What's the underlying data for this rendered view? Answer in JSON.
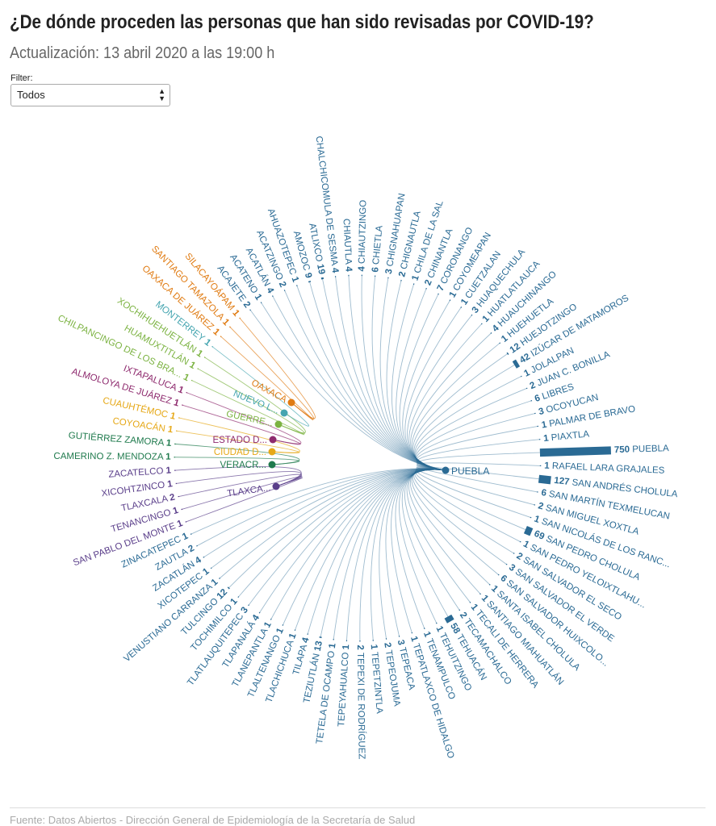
{
  "header": {
    "title": "¿De dónde proceden las personas que han sido revisadas por COVID-19?",
    "subtitle": "Actualización: 13 abril 2020 a las 19:00 h"
  },
  "filter": {
    "label": "Filter:",
    "value": "Todos"
  },
  "footer": {
    "source": "Fuente: Datos Abiertos - Dirección General de Epidemiología de la Secretaría de Salud"
  },
  "colors": {
    "Puebla": "#2a6a94",
    "Oaxaca": "#e07b12",
    "Nuevo León": "#45a5b0",
    "Guerrero": "#7cb342",
    "Estado de México": "#8e2a6e",
    "Ciudad de México": "#e6a817",
    "Veracruz": "#1f7a4d",
    "Tlaxcala": "#5a3e8a"
  },
  "chart_data": {
    "type": "radial-bar",
    "hub_left": "PUEBLA",
    "hubs_right": [
      {
        "label": "OAXACA",
        "state": "Oaxaca"
      },
      {
        "label": "NUEVO L...",
        "state": "Nuevo León"
      },
      {
        "label": "GUERRE...",
        "state": "Guerrero"
      },
      {
        "label": "ESTADO D...",
        "state": "Estado de México"
      },
      {
        "label": "CIUDAD D...",
        "state": "Ciudad de México"
      },
      {
        "label": "VERACR...",
        "state": "Veracruz"
      },
      {
        "label": "TLAXCA...",
        "state": "Tlaxcala"
      }
    ],
    "nodes": [
      {
        "name": "CHALCHICOMULA DE SESMA",
        "value": 4,
        "state": "Puebla"
      },
      {
        "name": "CHIAUTLA",
        "value": 4,
        "state": "Puebla"
      },
      {
        "name": "CHIAUTZINGO",
        "value": 4,
        "state": "Puebla"
      },
      {
        "name": "CHIETLA",
        "value": 6,
        "state": "Puebla"
      },
      {
        "name": "CHIGNAHUAPAN",
        "value": 3,
        "state": "Puebla"
      },
      {
        "name": "CHIGNAUTLA",
        "value": 2,
        "state": "Puebla"
      },
      {
        "name": "CHILA DE LA SAL",
        "value": 1,
        "state": "Puebla"
      },
      {
        "name": "CHINANTLA",
        "value": 2,
        "state": "Puebla"
      },
      {
        "name": "CORONANGO",
        "value": 7,
        "state": "Puebla"
      },
      {
        "name": "COYOMEAPAN",
        "value": 1,
        "state": "Puebla"
      },
      {
        "name": "CUETZALAN",
        "value": 1,
        "state": "Puebla"
      },
      {
        "name": "HUAQUECHULA",
        "value": 3,
        "state": "Puebla"
      },
      {
        "name": "HUATLATLAUCA",
        "value": 1,
        "state": "Puebla"
      },
      {
        "name": "HUAUCHINANGO",
        "value": 4,
        "state": "Puebla"
      },
      {
        "name": "HUEHUETLA",
        "value": 1,
        "state": "Puebla"
      },
      {
        "name": "HUEJOTZINGO",
        "value": 12,
        "state": "Puebla"
      },
      {
        "name": "IZÚCAR DE MATAMOROS",
        "value": 42,
        "state": "Puebla"
      },
      {
        "name": "JOLALPAN",
        "value": 1,
        "state": "Puebla"
      },
      {
        "name": "JUAN C. BONILLA",
        "value": 2,
        "state": "Puebla"
      },
      {
        "name": "LIBRES",
        "value": 6,
        "state": "Puebla"
      },
      {
        "name": "OCOYUCAN",
        "value": 3,
        "state": "Puebla"
      },
      {
        "name": "PALMAR DE BRAVO",
        "value": 1,
        "state": "Puebla"
      },
      {
        "name": "PIAXTLA",
        "value": 1,
        "state": "Puebla"
      },
      {
        "name": "PUEBLA",
        "value": 750,
        "state": "Puebla"
      },
      {
        "name": "RAFAEL LARA GRAJALES",
        "value": 1,
        "state": "Puebla"
      },
      {
        "name": "SAN ANDRÉS CHOLULA",
        "value": 127,
        "state": "Puebla"
      },
      {
        "name": "SAN MARTÍN TEXMELUCAN",
        "value": 6,
        "state": "Puebla"
      },
      {
        "name": "SAN MIGUEL XOXTLA",
        "value": 2,
        "state": "Puebla"
      },
      {
        "name": "SAN NICOLÁS DE LOS RANC...",
        "value": 1,
        "state": "Puebla"
      },
      {
        "name": "SAN PEDRO CHOLULA",
        "value": 69,
        "state": "Puebla"
      },
      {
        "name": "SAN PEDRO YELOIXTLAHU...",
        "value": 1,
        "state": "Puebla"
      },
      {
        "name": "SAN SALVADOR EL SECO",
        "value": 2,
        "state": "Puebla"
      },
      {
        "name": "SAN SALVADOR EL VERDE",
        "value": 3,
        "state": "Puebla"
      },
      {
        "name": "SAN SALVADOR HUIXCOLO...",
        "value": 6,
        "state": "Puebla"
      },
      {
        "name": "SANTA ISABEL CHOLULA",
        "value": 1,
        "state": "Puebla"
      },
      {
        "name": "SANTIAGO MIAHUATLÁN",
        "value": 1,
        "state": "Puebla"
      },
      {
        "name": "TECALI DE HERRERA",
        "value": 1,
        "state": "Puebla"
      },
      {
        "name": "TECAMACHALCO",
        "value": 2,
        "state": "Puebla"
      },
      {
        "name": "TEHUACÁN",
        "value": 58,
        "state": "Puebla"
      },
      {
        "name": "TEHUITZINGO",
        "value": 1,
        "state": "Puebla"
      },
      {
        "name": "TENAMPULCO",
        "value": 1,
        "state": "Puebla"
      },
      {
        "name": "TEPATLAXCO DE HIDALGO",
        "value": 1,
        "state": "Puebla"
      },
      {
        "name": "TEPEACA",
        "value": 3,
        "state": "Puebla"
      },
      {
        "name": "TEPEOJUMA",
        "value": 2,
        "state": "Puebla"
      },
      {
        "name": "TEPETZINTLA",
        "value": 1,
        "state": "Puebla"
      },
      {
        "name": "TEPEXI DE RODRÍGUEZ",
        "value": 2,
        "state": "Puebla"
      },
      {
        "name": "TEPEYAHUALCO",
        "value": 1,
        "state": "Puebla"
      },
      {
        "name": "TETELA DE OCAMPO",
        "value": 1,
        "state": "Puebla"
      },
      {
        "name": "TEZIUTLÁN",
        "value": 13,
        "state": "Puebla"
      },
      {
        "name": "TILAPA",
        "value": 4,
        "state": "Puebla"
      },
      {
        "name": "TLACHICHUCA",
        "value": 1,
        "state": "Puebla"
      },
      {
        "name": "TLALTENANGO",
        "value": 1,
        "state": "Puebla"
      },
      {
        "name": "TLANEPANTLA",
        "value": 1,
        "state": "Puebla"
      },
      {
        "name": "TLAPANALÁ",
        "value": 4,
        "state": "Puebla"
      },
      {
        "name": "TLATLAUQUITEPEC",
        "value": 3,
        "state": "Puebla"
      },
      {
        "name": "TOCHIMILCO",
        "value": 1,
        "state": "Puebla"
      },
      {
        "name": "TULCINGO",
        "value": 12,
        "state": "Puebla"
      },
      {
        "name": "VENUSTIANO CARRANZA",
        "value": 1,
        "state": "Puebla"
      },
      {
        "name": "XICOTEPEC",
        "value": 1,
        "state": "Puebla"
      },
      {
        "name": "ZACATLÁN",
        "value": 4,
        "state": "Puebla"
      },
      {
        "name": "ZAUTLA",
        "value": 2,
        "state": "Puebla"
      },
      {
        "name": "ZINACATEPEC",
        "value": 1,
        "state": "Puebla"
      },
      {
        "name": "SAN PABLO DEL MONTE",
        "value": 1,
        "state": "Tlaxcala"
      },
      {
        "name": "TENANCINGO",
        "value": 1,
        "state": "Tlaxcala"
      },
      {
        "name": "TLAXCALA",
        "value": 2,
        "state": "Tlaxcala"
      },
      {
        "name": "XICOHTZINCO",
        "value": 1,
        "state": "Tlaxcala"
      },
      {
        "name": "ZACATELCO",
        "value": 1,
        "state": "Tlaxcala"
      },
      {
        "name": "CAMERINO Z. MENDOZA",
        "value": 1,
        "state": "Veracruz"
      },
      {
        "name": "GUTIÉRREZ ZAMORA",
        "value": 1,
        "state": "Veracruz"
      },
      {
        "name": "COYOACÁN",
        "value": 1,
        "state": "Ciudad de México"
      },
      {
        "name": "CUAUHTÉMOC",
        "value": 1,
        "state": "Ciudad de México"
      },
      {
        "name": "ALMOLOYA DE JUÁREZ",
        "value": 1,
        "state": "Estado de México"
      },
      {
        "name": "IXTAPALUCA",
        "value": 1,
        "state": "Estado de México"
      },
      {
        "name": "CHILPANCINGO DE LOS BRA...",
        "value": 1,
        "state": "Guerrero"
      },
      {
        "name": "HUAMUXTITLÁN",
        "value": 1,
        "state": "Guerrero"
      },
      {
        "name": "XOCHIHUEHUETLÁN",
        "value": 1,
        "state": "Guerrero"
      },
      {
        "name": "MONTERREY",
        "value": 1,
        "state": "Nuevo León"
      },
      {
        "name": "OAXACA DE JUÁREZ",
        "value": 1,
        "state": "Oaxaca"
      },
      {
        "name": "SANTIAGO TAMAZOLA",
        "value": 1,
        "state": "Oaxaca"
      },
      {
        "name": "SILACAYOÁPAM",
        "value": 1,
        "state": "Oaxaca"
      },
      {
        "name": "ACAJETE",
        "value": 2,
        "state": "Puebla"
      },
      {
        "name": "ACATENO",
        "value": 1,
        "state": "Puebla"
      },
      {
        "name": "ACATLÁN",
        "value": 4,
        "state": "Puebla"
      },
      {
        "name": "ACATZINGO",
        "value": 2,
        "state": "Puebla"
      },
      {
        "name": "AHUAZOTEPEC",
        "value": 1,
        "state": "Puebla"
      },
      {
        "name": "AMOZOC",
        "value": 9,
        "state": "Puebla"
      },
      {
        "name": "ATLIXCO",
        "value": 19,
        "state": "Puebla"
      }
    ]
  }
}
